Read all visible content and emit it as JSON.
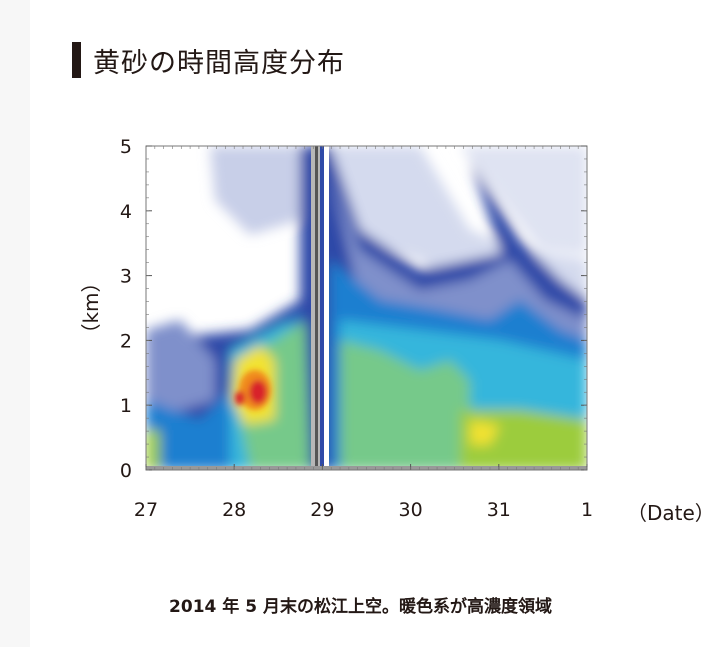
{
  "title": "黄砂の時間高度分布",
  "caption": "2014 年 5 月末の松江上空。暖色系が高濃度領域",
  "chart_data": {
    "type": "heatmap",
    "title": "黄砂の時間高度分布",
    "xlabel": "（Date）",
    "ylabel": "（km）",
    "x_ticks": [
      "27",
      "28",
      "29",
      "30",
      "31",
      "1"
    ],
    "x_tick_values": [
      0,
      1,
      2,
      3,
      4,
      5
    ],
    "y_ticks": [
      "0",
      "1",
      "2",
      "3",
      "4",
      "5"
    ],
    "y_tick_values": [
      0,
      1,
      2,
      3,
      4,
      5
    ],
    "xlim": [
      0,
      5
    ],
    "ylim": [
      0,
      5
    ],
    "colors": {
      "low": "#ffffff",
      "level1": "#c8cfe8",
      "level2": "#7f90cb",
      "level3": "#2f4aa8",
      "level4": "#1c7fd0",
      "level5": "#36b6dc",
      "level6": "#76c98a",
      "level7": "#9ccc3c",
      "level8": "#f2e232",
      "level9": "#f08a1e",
      "high": "#d8202a"
    },
    "annotation": "暖色系が高濃度領域"
  }
}
